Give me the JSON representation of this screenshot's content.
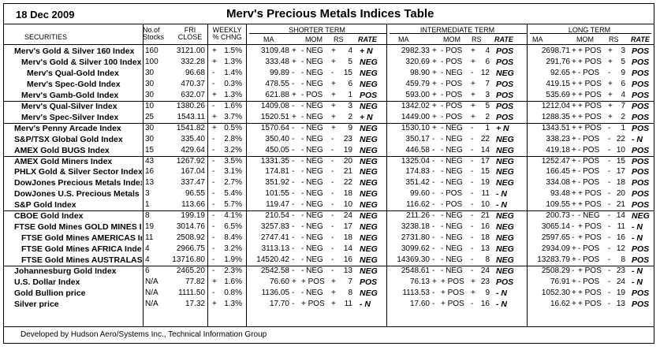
{
  "header": {
    "date": "18 Dec 2009",
    "title": "Merv's Precious Metals Indices Table"
  },
  "columns": {
    "no_of": "No.of",
    "stocks": "Stocks",
    "fri": "FRI",
    "close": "CLOSE",
    "weekly": "WEEKLY",
    "pct_chng": "% CHNG",
    "securities": "SECURITIES",
    "shorter_term": "SHORTER TERM",
    "intermediate_term": "INTERMEDIATE TERM",
    "long_term": "LONG TERM",
    "ma": "MA",
    "mom": "MOM",
    "rs": "RS",
    "rate": "RATE"
  },
  "rows": [
    {
      "name": "Merv's Gold & Silver 160 Index",
      "indent": 0,
      "stocks": "160",
      "close": "3121.00",
      "chg": "1.5%",
      "csign": "+",
      "s_ma": "3109.48",
      "s_ms": "+",
      "s_mom": "- NEG",
      "s_rss": "+",
      "s_rs": "4",
      "s_rate": "+ N",
      "i_ma": "2982.33",
      "i_ms": "+",
      "i_mom": "- POS",
      "i_rss": "+",
      "i_rs": "4",
      "i_rate": "POS",
      "l_ma": "2698.71",
      "l_ms": "+",
      "l_mom": "+ POS",
      "l_rss": "+",
      "l_rs": "3",
      "l_rate": "POS"
    },
    {
      "name": "Merv's Gold & Silver 100 Index",
      "indent": 1,
      "stocks": "100",
      "close": "332.28",
      "chg": "1.3%",
      "csign": "+",
      "s_ma": "333.48",
      "s_ms": "+",
      "s_mom": "- NEG",
      "s_rss": "+",
      "s_rs": "5",
      "s_rate": "NEG",
      "i_ma": "320.69",
      "i_ms": "+",
      "i_mom": "- POS",
      "i_rss": "+",
      "i_rs": "6",
      "i_rate": "POS",
      "l_ma": "291.76",
      "l_ms": "+",
      "l_mom": "+ POS",
      "l_rss": "+",
      "l_rs": "5",
      "l_rate": "POS"
    },
    {
      "name": "Merv's Qual-Gold Index",
      "indent": 2,
      "stocks": "30",
      "close": "96.68",
      "chg": "1.4%",
      "csign": "-",
      "s_ma": "99.89",
      "s_ms": "-",
      "s_mom": "- NEG",
      "s_rss": "-",
      "s_rs": "15",
      "s_rate": "NEG",
      "i_ma": "98.90",
      "i_ms": "+",
      "i_mom": "- NEG",
      "i_rss": "-",
      "i_rs": "12",
      "i_rate": "NEG",
      "l_ma": "92.65",
      "l_ms": "+",
      "l_mom": "- POS",
      "l_rss": "-",
      "l_rs": "9",
      "l_rate": "POS"
    },
    {
      "name": "Merv's Spec-Gold Index",
      "indent": 2,
      "stocks": "30",
      "close": "470.37",
      "chg": "0.3%",
      "csign": "-",
      "s_ma": "478.55",
      "s_ms": "-",
      "s_mom": "- NEG",
      "s_rss": "+",
      "s_rs": "6",
      "s_rate": "NEG",
      "i_ma": "459.79",
      "i_ms": "+",
      "i_mom": "- POS",
      "i_rss": "+",
      "i_rs": "7",
      "i_rate": "POS",
      "l_ma": "419.15",
      "l_ms": "+",
      "l_mom": "+ POS",
      "l_rss": "+",
      "l_rs": "6",
      "l_rate": "POS"
    },
    {
      "name": "Merv's Gamb-Gold Index",
      "indent": 1,
      "stocks": "30",
      "close": "632.07",
      "chg": "1.3%",
      "csign": "+",
      "s_ma": "621.88",
      "s_ms": "+",
      "s_mom": "- POS",
      "s_rss": "+",
      "s_rs": "1",
      "s_rate": "POS",
      "i_ma": "593.00",
      "i_ms": "+",
      "i_mom": "- POS",
      "i_rss": "+",
      "i_rs": "3",
      "i_rate": "POS",
      "l_ma": "535.69",
      "l_ms": "+",
      "l_mom": "+ POS",
      "l_rss": "+",
      "l_rs": "4",
      "l_rate": "POS"
    },
    {
      "name": "Merv's Qual-Silver Index",
      "indent": 1,
      "stocks": "10",
      "close": "1380.26",
      "chg": "1.6%",
      "csign": "-",
      "s_ma": "1409.08",
      "s_ms": "-",
      "s_mom": "- NEG",
      "s_rss": "+",
      "s_rs": "3",
      "s_rate": "NEG",
      "i_ma": "1342.02",
      "i_ms": "+",
      "i_mom": "- POS",
      "i_rss": "+",
      "i_rs": "5",
      "i_rate": "POS",
      "l_ma": "1212.04",
      "l_ms": "+",
      "l_mom": "+ POS",
      "l_rss": "+",
      "l_rs": "7",
      "l_rate": "POS"
    },
    {
      "name": "Merv's Spec-Silver Index",
      "indent": 1,
      "stocks": "25",
      "close": "1543.11",
      "chg": "3.7%",
      "csign": "+",
      "s_ma": "1520.51",
      "s_ms": "+",
      "s_mom": "- NEG",
      "s_rss": "+",
      "s_rs": "2",
      "s_rate": "+ N",
      "i_ma": "1449.00",
      "i_ms": "+",
      "i_mom": "- POS",
      "i_rss": "+",
      "i_rs": "2",
      "i_rate": "POS",
      "l_ma": "1288.35",
      "l_ms": "+",
      "l_mom": "+ POS",
      "l_rss": "+",
      "l_rs": "2",
      "l_rate": "POS"
    },
    {
      "name": "Merv's Penny Arcade Index",
      "indent": 0,
      "stocks": "30",
      "close": "1541.82",
      "chg": "0.5%",
      "csign": "+",
      "s_ma": "1570.64",
      "s_ms": "-",
      "s_mom": "- NEG",
      "s_rss": "+",
      "s_rs": "9",
      "s_rate": "NEG",
      "i_ma": "1530.10",
      "i_ms": "+",
      "i_mom": "- NEG",
      "i_rss": "-",
      "i_rs": "1",
      "i_rate": "+ N",
      "l_ma": "1343.51",
      "l_ms": "+",
      "l_mom": "+ POS",
      "l_rss": "-",
      "l_rs": "1",
      "l_rate": "POS"
    },
    {
      "name": "S&P/TSX Global Gold Index",
      "indent": 0,
      "stocks": "30",
      "close": "335.40",
      "chg": "2.8%",
      "csign": "-",
      "s_ma": "350.40",
      "s_ms": "-",
      "s_mom": "- NEG",
      "s_rss": "-",
      "s_rs": "23",
      "s_rate": "NEG",
      "i_ma": "350.17",
      "i_ms": "-",
      "i_mom": "- NEG",
      "i_rss": "-",
      "i_rs": "22",
      "i_rate": "NEG",
      "l_ma": "338.23",
      "l_ms": "+",
      "l_mom": "- POS",
      "l_rss": "-",
      "l_rs": "22",
      "l_rate": "- N"
    },
    {
      "name": "AMEX Gold BUGS Index",
      "indent": 0,
      "stocks": "15",
      "close": "429.64",
      "chg": "3.2%",
      "csign": "-",
      "s_ma": "450.05",
      "s_ms": "-",
      "s_mom": "- NEG",
      "s_rss": "-",
      "s_rs": "19",
      "s_rate": "NEG",
      "i_ma": "446.58",
      "i_ms": "-",
      "i_mom": "- NEG",
      "i_rss": "-",
      "i_rs": "14",
      "i_rate": "NEG",
      "l_ma": "419.18",
      "l_ms": "+",
      "l_mom": "- POS",
      "l_rss": "-",
      "l_rs": "10",
      "l_rate": "POS"
    },
    {
      "name": "AMEX Gold Miners Index",
      "indent": 0,
      "stocks": "43",
      "close": "1267.92",
      "chg": "3.5%",
      "csign": "-",
      "s_ma": "1331.35",
      "s_ms": "-",
      "s_mom": "- NEG",
      "s_rss": "-",
      "s_rs": "20",
      "s_rate": "NEG",
      "i_ma": "1325.04",
      "i_ms": "-",
      "i_mom": "- NEG",
      "i_rss": "-",
      "i_rs": "17",
      "i_rate": "NEG",
      "l_ma": "1252.47",
      "l_ms": "+",
      "l_mom": "- POS",
      "l_rss": "-",
      "l_rs": "15",
      "l_rate": "POS"
    },
    {
      "name": "PHLX Gold & Silver Sector Index",
      "indent": 0,
      "stocks": "16",
      "close": "167.04",
      "chg": "3.1%",
      "csign": "-",
      "s_ma": "174.81",
      "s_ms": "-",
      "s_mom": "- NEG",
      "s_rss": "-",
      "s_rs": "21",
      "s_rate": "NEG",
      "i_ma": "174.83",
      "i_ms": "-",
      "i_mom": "- NEG",
      "i_rss": "-",
      "i_rs": "15",
      "i_rate": "NEG",
      "l_ma": "166.45",
      "l_ms": "+",
      "l_mom": "- POS",
      "l_rss": "-",
      "l_rs": "17",
      "l_rate": "POS"
    },
    {
      "name": "DowJones Precious Metals Index",
      "indent": 0,
      "stocks": "13",
      "close": "337.47",
      "chg": "2.7%",
      "csign": "-",
      "s_ma": "351.92",
      "s_ms": "-",
      "s_mom": "- NEG",
      "s_rss": "-",
      "s_rs": "22",
      "s_rate": "NEG",
      "i_ma": "351.42",
      "i_ms": "-",
      "i_mom": "- NEG",
      "i_rss": "-",
      "i_rs": "19",
      "i_rate": "NEG",
      "l_ma": "334.08",
      "l_ms": "+",
      "l_mom": "- POS",
      "l_rss": "-",
      "l_rs": "18",
      "l_rate": "POS"
    },
    {
      "name": "DowJones U.S. Precious Metals",
      "indent": 0,
      "stocks": "3",
      "close": "96.55",
      "chg": "5.4%",
      "csign": "-",
      "s_ma": "101.55",
      "s_ms": "-",
      "s_mom": "- NEG",
      "s_rss": "-",
      "s_rs": "18",
      "s_rate": "NEG",
      "i_ma": "99.60",
      "i_ms": "-",
      "i_mom": "- POS",
      "i_rss": "-",
      "i_rs": "11",
      "i_rate": "- N",
      "l_ma": "93.48",
      "l_ms": "+",
      "l_mom": "+ POS",
      "l_rss": "-",
      "l_rs": "20",
      "l_rate": "POS"
    },
    {
      "name": "S&P Gold Index",
      "indent": 0,
      "stocks": "1",
      "close": "113.66",
      "chg": "5.7%",
      "csign": "-",
      "s_ma": "119.47",
      "s_ms": "-",
      "s_mom": "- NEG",
      "s_rss": "-",
      "s_rs": "10",
      "s_rate": "NEG",
      "i_ma": "116.62",
      "i_ms": "-",
      "i_mom": "- POS",
      "i_rss": "-",
      "i_rs": "10",
      "i_rate": "- N",
      "l_ma": "109.55",
      "l_ms": "+",
      "l_mom": "+ POS",
      "l_rss": "-",
      "l_rs": "21",
      "l_rate": "POS"
    },
    {
      "name": "CBOE Gold Index",
      "indent": 0,
      "stocks": "8",
      "close": "199.19",
      "chg": "4.1%",
      "csign": "-",
      "s_ma": "210.54",
      "s_ms": "-",
      "s_mom": "- NEG",
      "s_rss": "-",
      "s_rs": "24",
      "s_rate": "NEG",
      "i_ma": "211.26",
      "i_ms": "-",
      "i_mom": "- NEG",
      "i_rss": "-",
      "i_rs": "21",
      "i_rate": "NEG",
      "l_ma": "200.73",
      "l_ms": "-",
      "l_mom": "- NEG",
      "l_rss": "-",
      "l_rs": "14",
      "l_rate": "NEG"
    },
    {
      "name": "FTSE Gold Mines GOLD MINES Index",
      "indent": 0,
      "stocks": "19",
      "close": "3014.76",
      "chg": "6.5%",
      "csign": "-",
      "s_ma": "3257.83",
      "s_ms": "-",
      "s_mom": "- NEG",
      "s_rss": "-",
      "s_rs": "17",
      "s_rate": "NEG",
      "i_ma": "3238.18",
      "i_ms": "-",
      "i_mom": "- NEG",
      "i_rss": "-",
      "i_rs": "16",
      "i_rate": "NEG",
      "l_ma": "3065.14",
      "l_ms": "-",
      "l_mom": "+ POS",
      "l_rss": "-",
      "l_rs": "11",
      "l_rate": "- N"
    },
    {
      "name": "FTSE Gold Mines AMERICAS Index",
      "indent": 1,
      "stocks": "11",
      "close": "2508.92",
      "chg": "8.4%",
      "csign": "-",
      "s_ma": "2747.41",
      "s_ms": "-",
      "s_mom": "- NEG",
      "s_rss": "-",
      "s_rs": "18",
      "s_rate": "NEG",
      "i_ma": "2731.80",
      "i_ms": "-",
      "i_mom": "- NEG",
      "i_rss": "-",
      "i_rs": "18",
      "i_rate": "NEG",
      "l_ma": "2597.65",
      "l_ms": "-",
      "l_mom": "+ POS",
      "l_rss": "-",
      "l_rs": "16",
      "l_rate": "- N"
    },
    {
      "name": "FTSE Gold Mines AFRICA Index",
      "indent": 1,
      "stocks": "4",
      "close": "2966.75",
      "chg": "3.2%",
      "csign": "-",
      "s_ma": "3113.13",
      "s_ms": "-",
      "s_mom": "- NEG",
      "s_rss": "-",
      "s_rs": "14",
      "s_rate": "NEG",
      "i_ma": "3099.62",
      "i_ms": "-",
      "i_mom": "- NEG",
      "i_rss": "-",
      "i_rs": "13",
      "i_rate": "NEG",
      "l_ma": "2934.09",
      "l_ms": "+",
      "l_mom": "- POS",
      "l_rss": "-",
      "l_rs": "12",
      "l_rate": "POS"
    },
    {
      "name": "FTSE Gold Mines AUSTRALASIA Index",
      "indent": 1,
      "stocks": "4",
      "close": "13716.80",
      "chg": "1.9%",
      "csign": "-",
      "s_ma": "14520.42",
      "s_ms": "-",
      "s_mom": "- NEG",
      "s_rss": "-",
      "s_rs": "16",
      "s_rate": "NEG",
      "i_ma": "14369.30",
      "i_ms": "-",
      "i_mom": "- NEG",
      "i_rss": "-",
      "i_rs": "8",
      "i_rate": "NEG",
      "l_ma": "13283.79",
      "l_ms": "+",
      "l_mom": "- POS",
      "l_rss": "-",
      "l_rs": "8",
      "l_rate": "POS"
    },
    {
      "name": "Johannesburg Gold Index",
      "indent": 0,
      "stocks": "6",
      "close": "2465.20",
      "chg": "2.3%",
      "csign": "-",
      "s_ma": "2542.58",
      "s_ms": "-",
      "s_mom": "- NEG",
      "s_rss": "-",
      "s_rs": "13",
      "s_rate": "NEG",
      "i_ma": "2548.61",
      "i_ms": "-",
      "i_mom": "- NEG",
      "i_rss": "-",
      "i_rs": "24",
      "i_rate": "NEG",
      "l_ma": "2508.29",
      "l_ms": "-",
      "l_mom": "+ POS",
      "l_rss": "-",
      "l_rs": "23",
      "l_rate": "- N"
    },
    {
      "name": "U.S. Dollar Index",
      "indent": 0,
      "stocks": "N/A",
      "close": "77.82",
      "chg": "1.6%",
      "csign": "+",
      "s_ma": "76.60",
      "s_ms": "+",
      "s_mom": "+ POS",
      "s_rss": "+",
      "s_rs": "7",
      "s_rate": "POS",
      "i_ma": "76.13",
      "i_ms": "+",
      "i_mom": "+ POS",
      "i_rss": "+",
      "i_rs": "23",
      "i_rate": "POS",
      "l_ma": "76.91",
      "l_ms": "+",
      "l_mom": "- POS",
      "l_rss": "-",
      "l_rs": "24",
      "l_rate": "- N"
    },
    {
      "name": "Gold Bullion price",
      "indent": 0,
      "stocks": "N/A",
      "close": "1111.50",
      "chg": "0.8%",
      "csign": "-",
      "s_ma": "1136.05",
      "s_ms": "-",
      "s_mom": "- NEG",
      "s_rss": "+",
      "s_rs": "8",
      "s_rate": "NEG",
      "i_ma": "1113.53",
      "i_ms": "-",
      "i_mom": "+ POS",
      "i_rss": "+",
      "i_rs": "9",
      "i_rate": "- N",
      "l_ma": "1052.30",
      "l_ms": "+",
      "l_mom": "+ POS",
      "l_rss": "-",
      "l_rs": "19",
      "l_rate": "POS"
    },
    {
      "name": "Silver price",
      "indent": 0,
      "stocks": "N/A",
      "close": "17.32",
      "chg": "1.3%",
      "csign": "+",
      "s_ma": "17.70",
      "s_ms": "-",
      "s_mom": "+ POS",
      "s_rss": "+",
      "s_rs": "11",
      "s_rate": "- N",
      "i_ma": "17.60",
      "i_ms": "-",
      "i_mom": "+ POS",
      "i_rss": "-",
      "i_rs": "16",
      "i_rate": "- N",
      "l_ma": "16.62",
      "l_ms": "+",
      "l_mom": "+ POS",
      "l_rss": "-",
      "l_rs": "13",
      "l_rate": "POS"
    }
  ],
  "footer": "Developed by Hudson Aero/Systems Inc.,   Technical Information Group"
}
